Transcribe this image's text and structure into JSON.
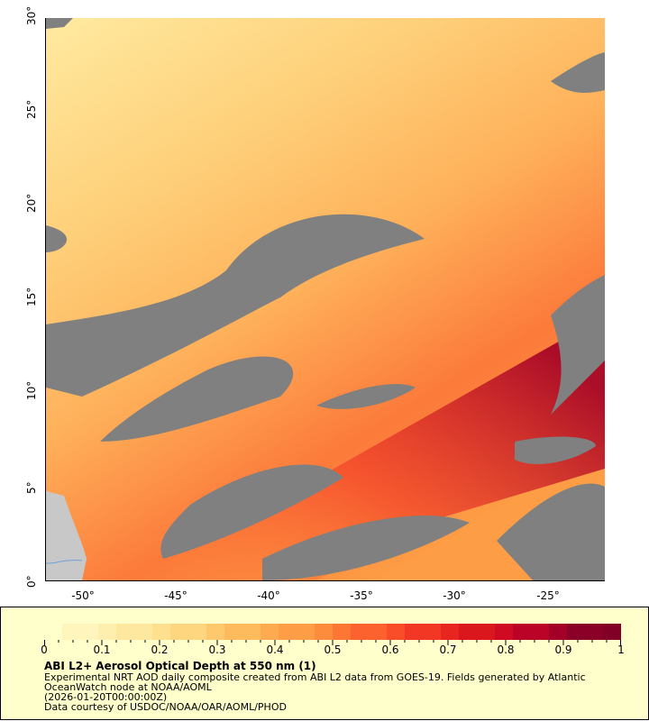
{
  "map": {
    "variable": "Aerosol Optical Depth",
    "lat_range": [
      0,
      30
    ],
    "lon_range": [
      -52,
      -22
    ],
    "y_ticks": [
      "0°",
      "5°",
      "10°",
      "15°",
      "20°",
      "25°",
      "30°"
    ],
    "x_ticks": [
      "-50°",
      "-45°",
      "-40°",
      "-35°",
      "-30°",
      "-25°"
    ],
    "colors": {
      "no_data": "#808080",
      "land": "#c8c8c8",
      "low": "#ffffcc",
      "high": "#800026"
    }
  },
  "legend": {
    "colorbar_ticks": [
      "0",
      "0.1",
      "0.2",
      "0.3",
      "0.4",
      "0.5",
      "0.6",
      "0.7",
      "0.8",
      "0.9",
      "1"
    ],
    "colorbar_range": [
      0,
      1
    ],
    "colormap": [
      "#ffffcc",
      "#fff5bd",
      "#ffefae",
      "#fee89f",
      "#fee08f",
      "#fed67f",
      "#fec96d",
      "#febb5d",
      "#fdab50",
      "#fd9d45",
      "#fd8c3c",
      "#fc7734",
      "#fc622d",
      "#f94c29",
      "#f23724",
      "#e8261f",
      "#db171e",
      "#ce0b22",
      "#ba0326",
      "#a20026",
      "#8a0026",
      "#800026"
    ],
    "title": "ABI L2+ Aerosol Optical Depth at 550 nm (1)",
    "description_line1": "Experimental NRT AOD daily composite created from ABI L2 data from GOES-19. Fields generated by Atlantic",
    "description_line2": "OceanWatch node at NOAA/AOML",
    "time": "(2026-01-20T00:00:00Z)",
    "credit": "Data courtesy of USDOC/NOAA/OAR/AOML/PHOD"
  }
}
